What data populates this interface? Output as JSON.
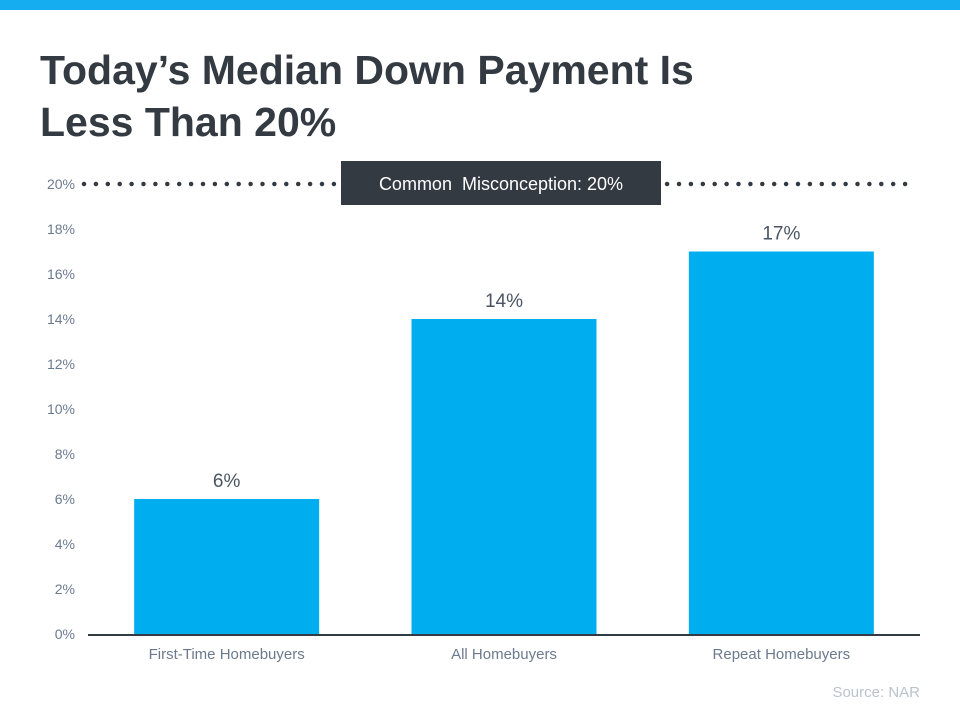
{
  "colors": {
    "top_bar": "#15adef",
    "bar": "#00aeef",
    "title": "#333a42",
    "axis_text": "#6b7a8f",
    "annotation_bg": "#333a42"
  },
  "title_line1": "Today’s Median Down Payment Is",
  "title_line2": "Less Than 20%",
  "source": "Source: NAR",
  "chart_data": {
    "type": "bar",
    "categories": [
      "First-Time Homebuyers",
      "All Homebuyers",
      "Repeat Homebuyers"
    ],
    "values": [
      6,
      14,
      17
    ],
    "data_labels": [
      "6%",
      "14%",
      "17%"
    ],
    "ylim": [
      0,
      20
    ],
    "yticks": [
      0,
      2,
      4,
      6,
      8,
      10,
      12,
      14,
      16,
      18,
      20
    ],
    "ytick_labels": [
      "0%",
      "2%",
      "4%",
      "6%",
      "8%",
      "10%",
      "12%",
      "14%",
      "16%",
      "18%",
      "20%"
    ],
    "grid": false,
    "reference_line": {
      "value": 20,
      "style": "dotted",
      "label": "Common  Misconception: 20%"
    }
  }
}
